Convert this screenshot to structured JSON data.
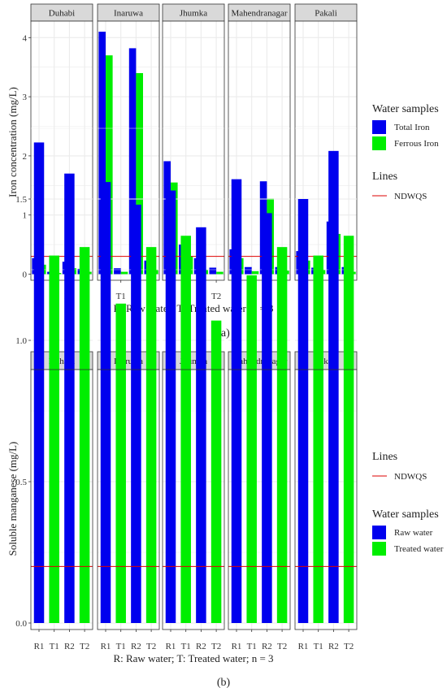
{
  "chart_data": [
    {
      "type": "bar",
      "panel_label": "(a)",
      "ylabel": "Iron concentration (mg/L)",
      "xlabel": "R: Raw water;  T: Treated water; n = 3",
      "ylim": [
        0,
        4.3
      ],
      "yticks": [
        "0",
        "1",
        "2",
        "3",
        "4"
      ],
      "categories": [
        "R1",
        "T1",
        "R2",
        "T2"
      ],
      "facets": [
        {
          "name": "Duhabi",
          "series": [
            {
              "values": [
                0.27,
                0.04,
                0.21,
                0.09
              ]
            },
            {
              "values": [
                0.16,
                0.02,
                0.1,
                0.04
              ]
            }
          ]
        },
        {
          "name": "Inaruwa",
          "series": [
            {
              "values": [
                4.1,
                0.1,
                3.82,
                0.23
              ]
            },
            {
              "values": [
                3.7,
                0.04,
                3.4,
                0.07
              ]
            }
          ]
        },
        {
          "name": "Jhumka",
          "series": [
            {
              "values": [
                1.91,
                0.5,
                0.27,
                0.11
              ]
            },
            {
              "values": [
                1.55,
                0.3,
                0.07,
                0.04
              ]
            }
          ]
        },
        {
          "name": "Mahendranagar",
          "series": [
            {
              "values": [
                0.42,
                0.12,
                1.57,
                0.12
              ]
            },
            {
              "values": [
                0.27,
                0.05,
                1.28,
                0.06
              ]
            }
          ]
        },
        {
          "name": "Pakali",
          "series": [
            {
              "values": [
                0.39,
                0.11,
                0.89,
                0.12
              ]
            },
            {
              "values": [
                0.23,
                0.07,
                0.68,
                0.04
              ]
            }
          ]
        }
      ],
      "reference_line": {
        "label": "NDWQS",
        "value": 0.3
      },
      "legend": {
        "samples_title": "Water samples",
        "samples": [
          "Total Iron",
          "Ferrous Iron"
        ],
        "lines_title": "Lines",
        "order": "samples-first"
      },
      "grid": true,
      "legend_position": "right"
    },
    {
      "type": "bar",
      "panel_label": "(b)",
      "ylabel": "Soluble manganese (mg/L)",
      "xlabel": "R: Raw water;  T: Treated water; n = 3",
      "ylim": [
        0,
        1.8
      ],
      "yticks": [
        "0.0",
        "0.5",
        "1.0",
        "1.5"
      ],
      "categories": [
        "R1",
        "T1",
        "R2",
        "T2"
      ],
      "facets": [
        {
          "name": "Duhabi",
          "values": [
            1.7,
            1.3,
            1.59,
            1.33
          ]
        },
        {
          "name": "Inaruwa",
          "values": [
            1.56,
            1.13,
            1.48,
            1.33
          ]
        },
        {
          "name": "Jhumka",
          "values": [
            1.53,
            1.37,
            1.4,
            1.07
          ]
        },
        {
          "name": "Mahendranagar",
          "values": [
            1.57,
            1.23,
            1.45,
            1.33
          ]
        },
        {
          "name": "Pakali",
          "values": [
            1.5,
            1.3,
            1.67,
            1.37
          ]
        }
      ],
      "reference_line": {
        "label": "NDWQS",
        "value": 0.2
      },
      "legend": {
        "samples_title": "Water samples",
        "samples": [
          "Raw water",
          "Treated water"
        ],
        "lines_title": "Lines",
        "order": "lines-first"
      },
      "grid": true,
      "legend_position": "right"
    }
  ],
  "colors": {
    "blue": "#0000ee",
    "green": "#00ee00",
    "ref_line": "#dd0000",
    "strip": "#d9d9d9",
    "grid": "#ebebeb"
  }
}
